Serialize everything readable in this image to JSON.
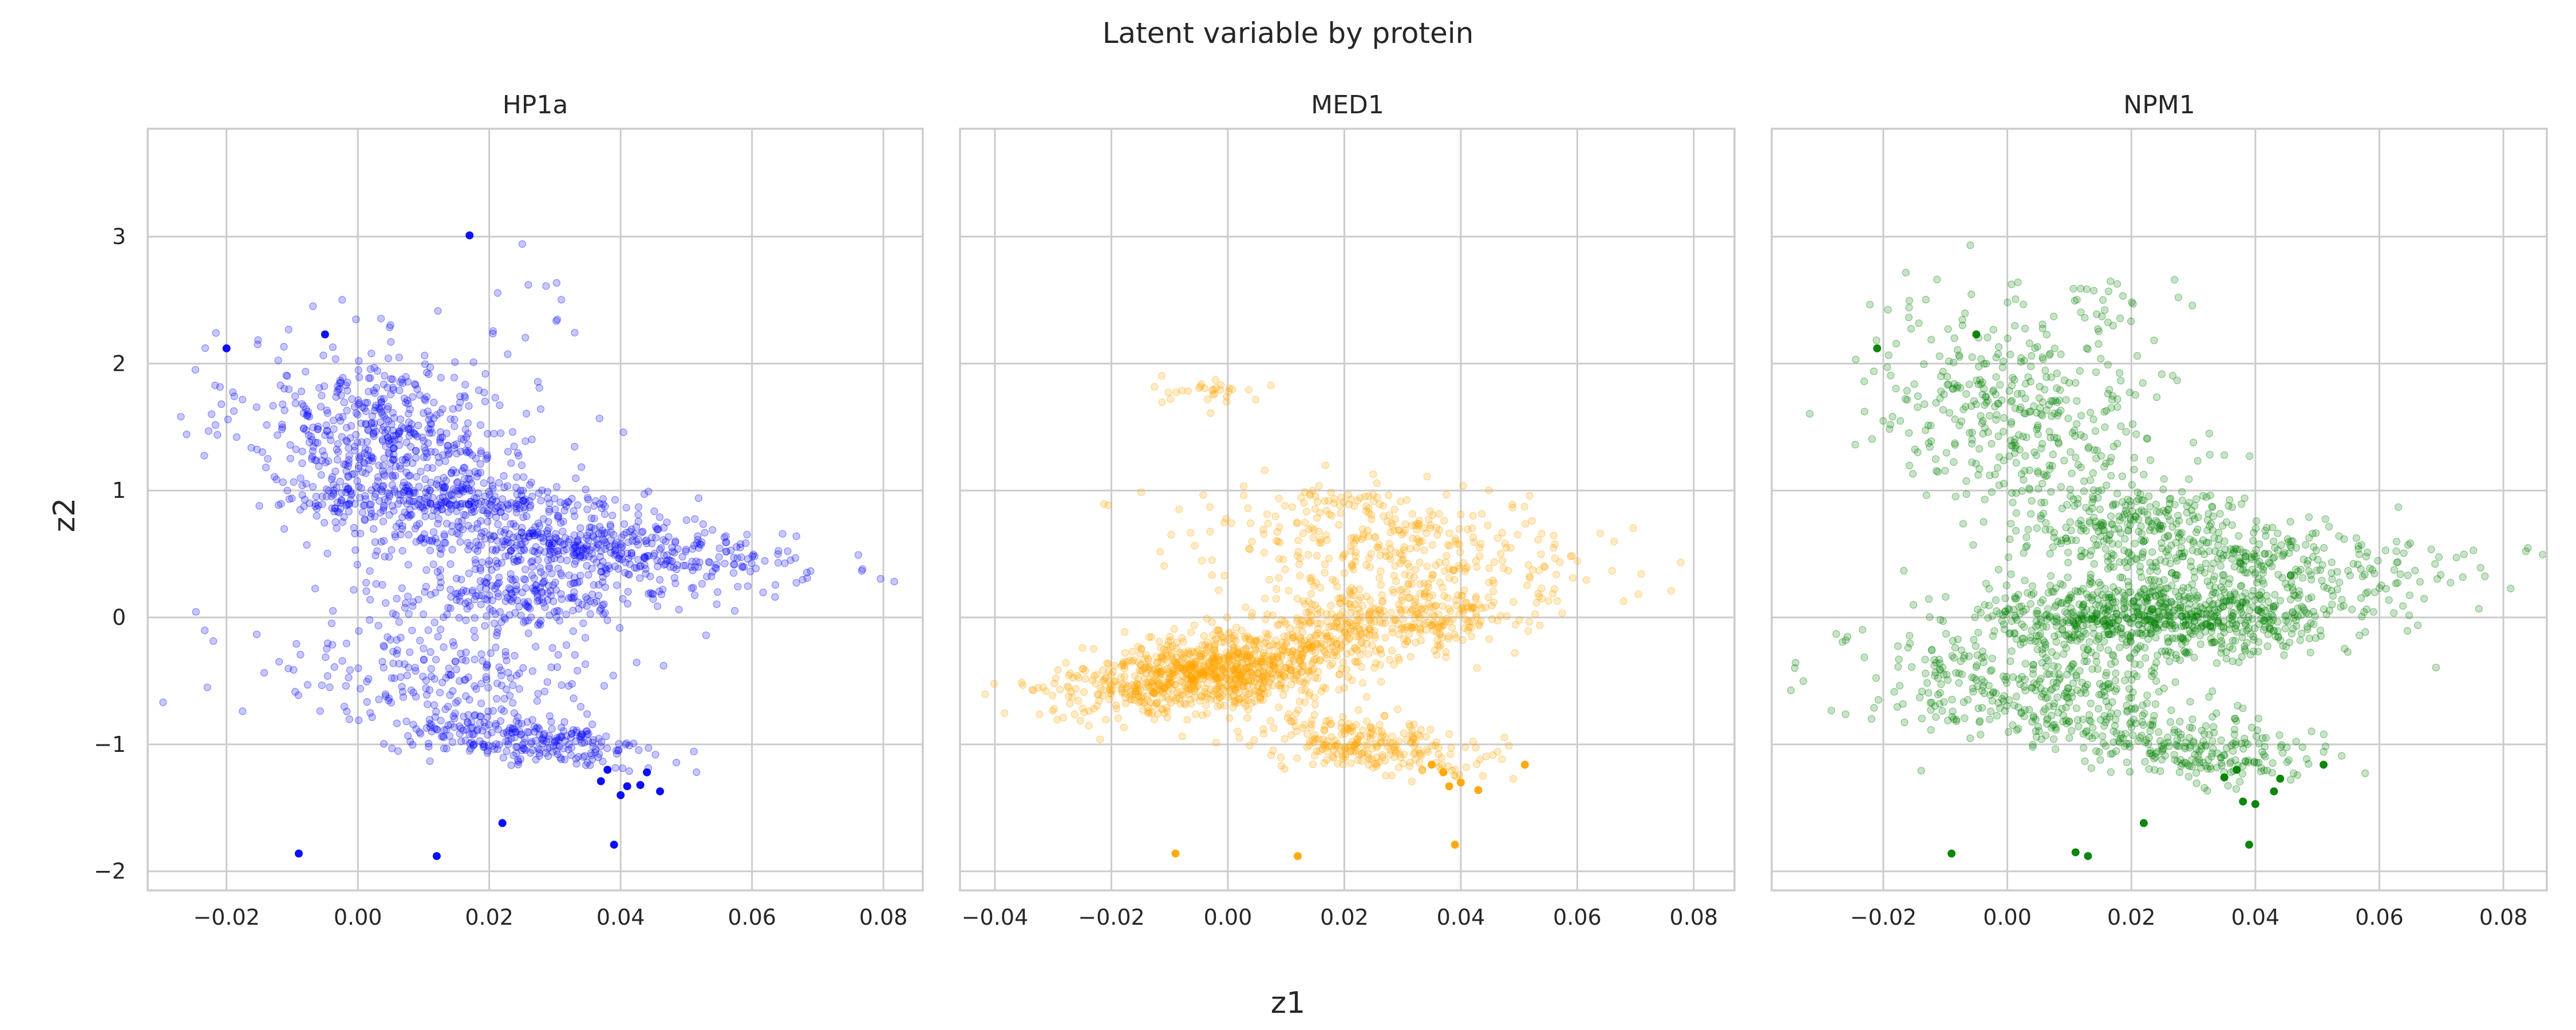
{
  "figure": {
    "title": "Latent variable by protein",
    "xlabel": "z1",
    "ylabel": "z2"
  },
  "chart_data": [
    {
      "type": "scatter",
      "title": "HP1a",
      "color": "#0000ff",
      "xlim": [
        -0.032,
        0.086
      ],
      "ylim": [
        -2.15,
        3.85
      ],
      "xticks": [
        -0.02,
        0.0,
        0.02,
        0.04,
        0.06,
        0.08
      ],
      "xtick_labels": [
        "−0.02",
        "0.00",
        "0.02",
        "0.04",
        "0.06",
        "0.08"
      ],
      "yticks": [
        -2,
        -1,
        0,
        1,
        2,
        3
      ],
      "ytick_labels": [
        "−2",
        "−1",
        "0",
        "1",
        "2",
        "3"
      ],
      "clusters": [
        {
          "cx": 0.005,
          "cy": 1.4,
          "sx": 0.011,
          "sy": 0.35,
          "slope": -6,
          "n": 600
        },
        {
          "cx": 0.015,
          "cy": 0.92,
          "sx": 0.013,
          "sy": 0.07,
          "slope": 0,
          "n": 230
        },
        {
          "cx": 0.035,
          "cy": 0.55,
          "sx": 0.016,
          "sy": 0.12,
          "slope": -4,
          "n": 500
        },
        {
          "cx": 0.025,
          "cy": 0.15,
          "sx": 0.012,
          "sy": 0.12,
          "slope": 0,
          "n": 250
        },
        {
          "cx": 0.012,
          "cy": -0.45,
          "sx": 0.013,
          "sy": 0.22,
          "slope": 0,
          "n": 200
        },
        {
          "cx": 0.025,
          "cy": -0.97,
          "sx": 0.01,
          "sy": 0.1,
          "slope": -5,
          "n": 260
        },
        {
          "cx": 0.02,
          "cy": 2.55,
          "sx": 0.008,
          "sy": 0.3,
          "slope": 0,
          "n": 14
        }
      ],
      "highlights": [
        {
          "x": -0.02,
          "y": 2.12
        },
        {
          "x": -0.005,
          "y": 2.23
        },
        {
          "x": -0.009,
          "y": -1.86
        },
        {
          "x": 0.012,
          "y": -1.88
        },
        {
          "x": 0.022,
          "y": -1.62
        },
        {
          "x": 0.039,
          "y": -1.79
        },
        {
          "x": 0.038,
          "y": -1.2
        },
        {
          "x": 0.04,
          "y": -1.4
        },
        {
          "x": 0.043,
          "y": -1.32
        },
        {
          "x": 0.046,
          "y": -1.37
        },
        {
          "x": 0.044,
          "y": -1.22
        },
        {
          "x": 0.037,
          "y": -1.29
        },
        {
          "x": 0.017,
          "y": 3.01
        },
        {
          "x": 0.041,
          "y": -1.33
        }
      ]
    },
    {
      "type": "scatter",
      "title": "MED1",
      "color": "#ffa500",
      "xlim": [
        -0.046,
        0.087
      ],
      "ylim": [
        -2.15,
        3.85
      ],
      "xticks": [
        -0.04,
        -0.02,
        0.0,
        0.02,
        0.04,
        0.06,
        0.08
      ],
      "xtick_labels": [
        "−0.04",
        "−0.02",
        "0.00",
        "0.02",
        "0.04",
        "0.06",
        "0.08"
      ],
      "yticks": [
        -2,
        -1,
        0,
        1,
        2,
        3
      ],
      "ytick_labels": [
        "",
        "",
        "",
        "",
        "",
        ""
      ],
      "clusters": [
        {
          "cx": -0.002,
          "cy": -0.42,
          "sx": 0.012,
          "sy": 0.15,
          "slope": 5,
          "n": 1000
        },
        {
          "cx": 0.028,
          "cy": -0.02,
          "sx": 0.01,
          "sy": 0.12,
          "slope": 0,
          "n": 300
        },
        {
          "cx": 0.03,
          "cy": 0.55,
          "sx": 0.018,
          "sy": 0.22,
          "slope": -3,
          "n": 350
        },
        {
          "cx": 0.025,
          "cy": -1.0,
          "sx": 0.01,
          "sy": 0.1,
          "slope": -5,
          "n": 260
        },
        {
          "cx": -0.005,
          "cy": 1.78,
          "sx": 0.006,
          "sy": 0.08,
          "slope": 0,
          "n": 30
        },
        {
          "cx": 0.02,
          "cy": 0.92,
          "sx": 0.005,
          "sy": 0.05,
          "slope": 0,
          "n": 30
        }
      ],
      "highlights": [
        {
          "x": -0.009,
          "y": -1.86
        },
        {
          "x": 0.012,
          "y": -1.88
        },
        {
          "x": 0.039,
          "y": -1.79
        },
        {
          "x": 0.037,
          "y": -1.22
        },
        {
          "x": 0.038,
          "y": -1.33
        },
        {
          "x": 0.04,
          "y": -1.3
        },
        {
          "x": 0.043,
          "y": -1.36
        },
        {
          "x": 0.051,
          "y": -1.16
        },
        {
          "x": 0.035,
          "y": -1.16
        }
      ]
    },
    {
      "type": "scatter",
      "title": "NPM1",
      "color": "#008000",
      "xlim": [
        -0.038,
        0.087
      ],
      "ylim": [
        -2.15,
        3.85
      ],
      "xticks": [
        -0.02,
        0.0,
        0.02,
        0.04,
        0.06,
        0.08
      ],
      "xtick_labels": [
        "−0.02",
        "0.00",
        "0.02",
        "0.04",
        "0.06",
        "0.08"
      ],
      "yticks": [
        -2,
        -1,
        0,
        1,
        2,
        3
      ],
      "ytick_labels": [
        "",
        "",
        "",
        "",
        "",
        ""
      ],
      "clusters": [
        {
          "cx": 0.002,
          "cy": 1.6,
          "sx": 0.012,
          "sy": 0.4,
          "slope": -10,
          "n": 400
        },
        {
          "cx": 0.025,
          "cy": 0.0,
          "sx": 0.014,
          "sy": 0.15,
          "slope": 0,
          "n": 800
        },
        {
          "cx": 0.04,
          "cy": 0.45,
          "sx": 0.018,
          "sy": 0.15,
          "slope": -2,
          "n": 300
        },
        {
          "cx": 0.02,
          "cy": 0.75,
          "sx": 0.01,
          "sy": 0.15,
          "slope": 0,
          "n": 200
        },
        {
          "cx": 0.005,
          "cy": -0.6,
          "sx": 0.015,
          "sy": 0.22,
          "slope": -5,
          "n": 400
        },
        {
          "cx": 0.03,
          "cy": -1.05,
          "sx": 0.01,
          "sy": 0.12,
          "slope": -5,
          "n": 200
        },
        {
          "cx": 0.015,
          "cy": 2.45,
          "sx": 0.006,
          "sy": 0.15,
          "slope": 0,
          "n": 25
        }
      ],
      "highlights": [
        {
          "x": -0.009,
          "y": -1.86
        },
        {
          "x": 0.011,
          "y": -1.85
        },
        {
          "x": 0.013,
          "y": -1.88
        },
        {
          "x": 0.039,
          "y": -1.79
        },
        {
          "x": 0.038,
          "y": -1.45
        },
        {
          "x": 0.04,
          "y": -1.47
        },
        {
          "x": 0.043,
          "y": -1.37
        },
        {
          "x": 0.044,
          "y": -1.27
        },
        {
          "x": 0.051,
          "y": -1.16
        },
        {
          "x": 0.022,
          "y": -1.62
        },
        {
          "x": 0.035,
          "y": -1.26
        },
        {
          "x": 0.037,
          "y": -1.2
        },
        {
          "x": -0.021,
          "y": 2.12
        },
        {
          "x": -0.005,
          "y": 2.23
        }
      ]
    }
  ]
}
